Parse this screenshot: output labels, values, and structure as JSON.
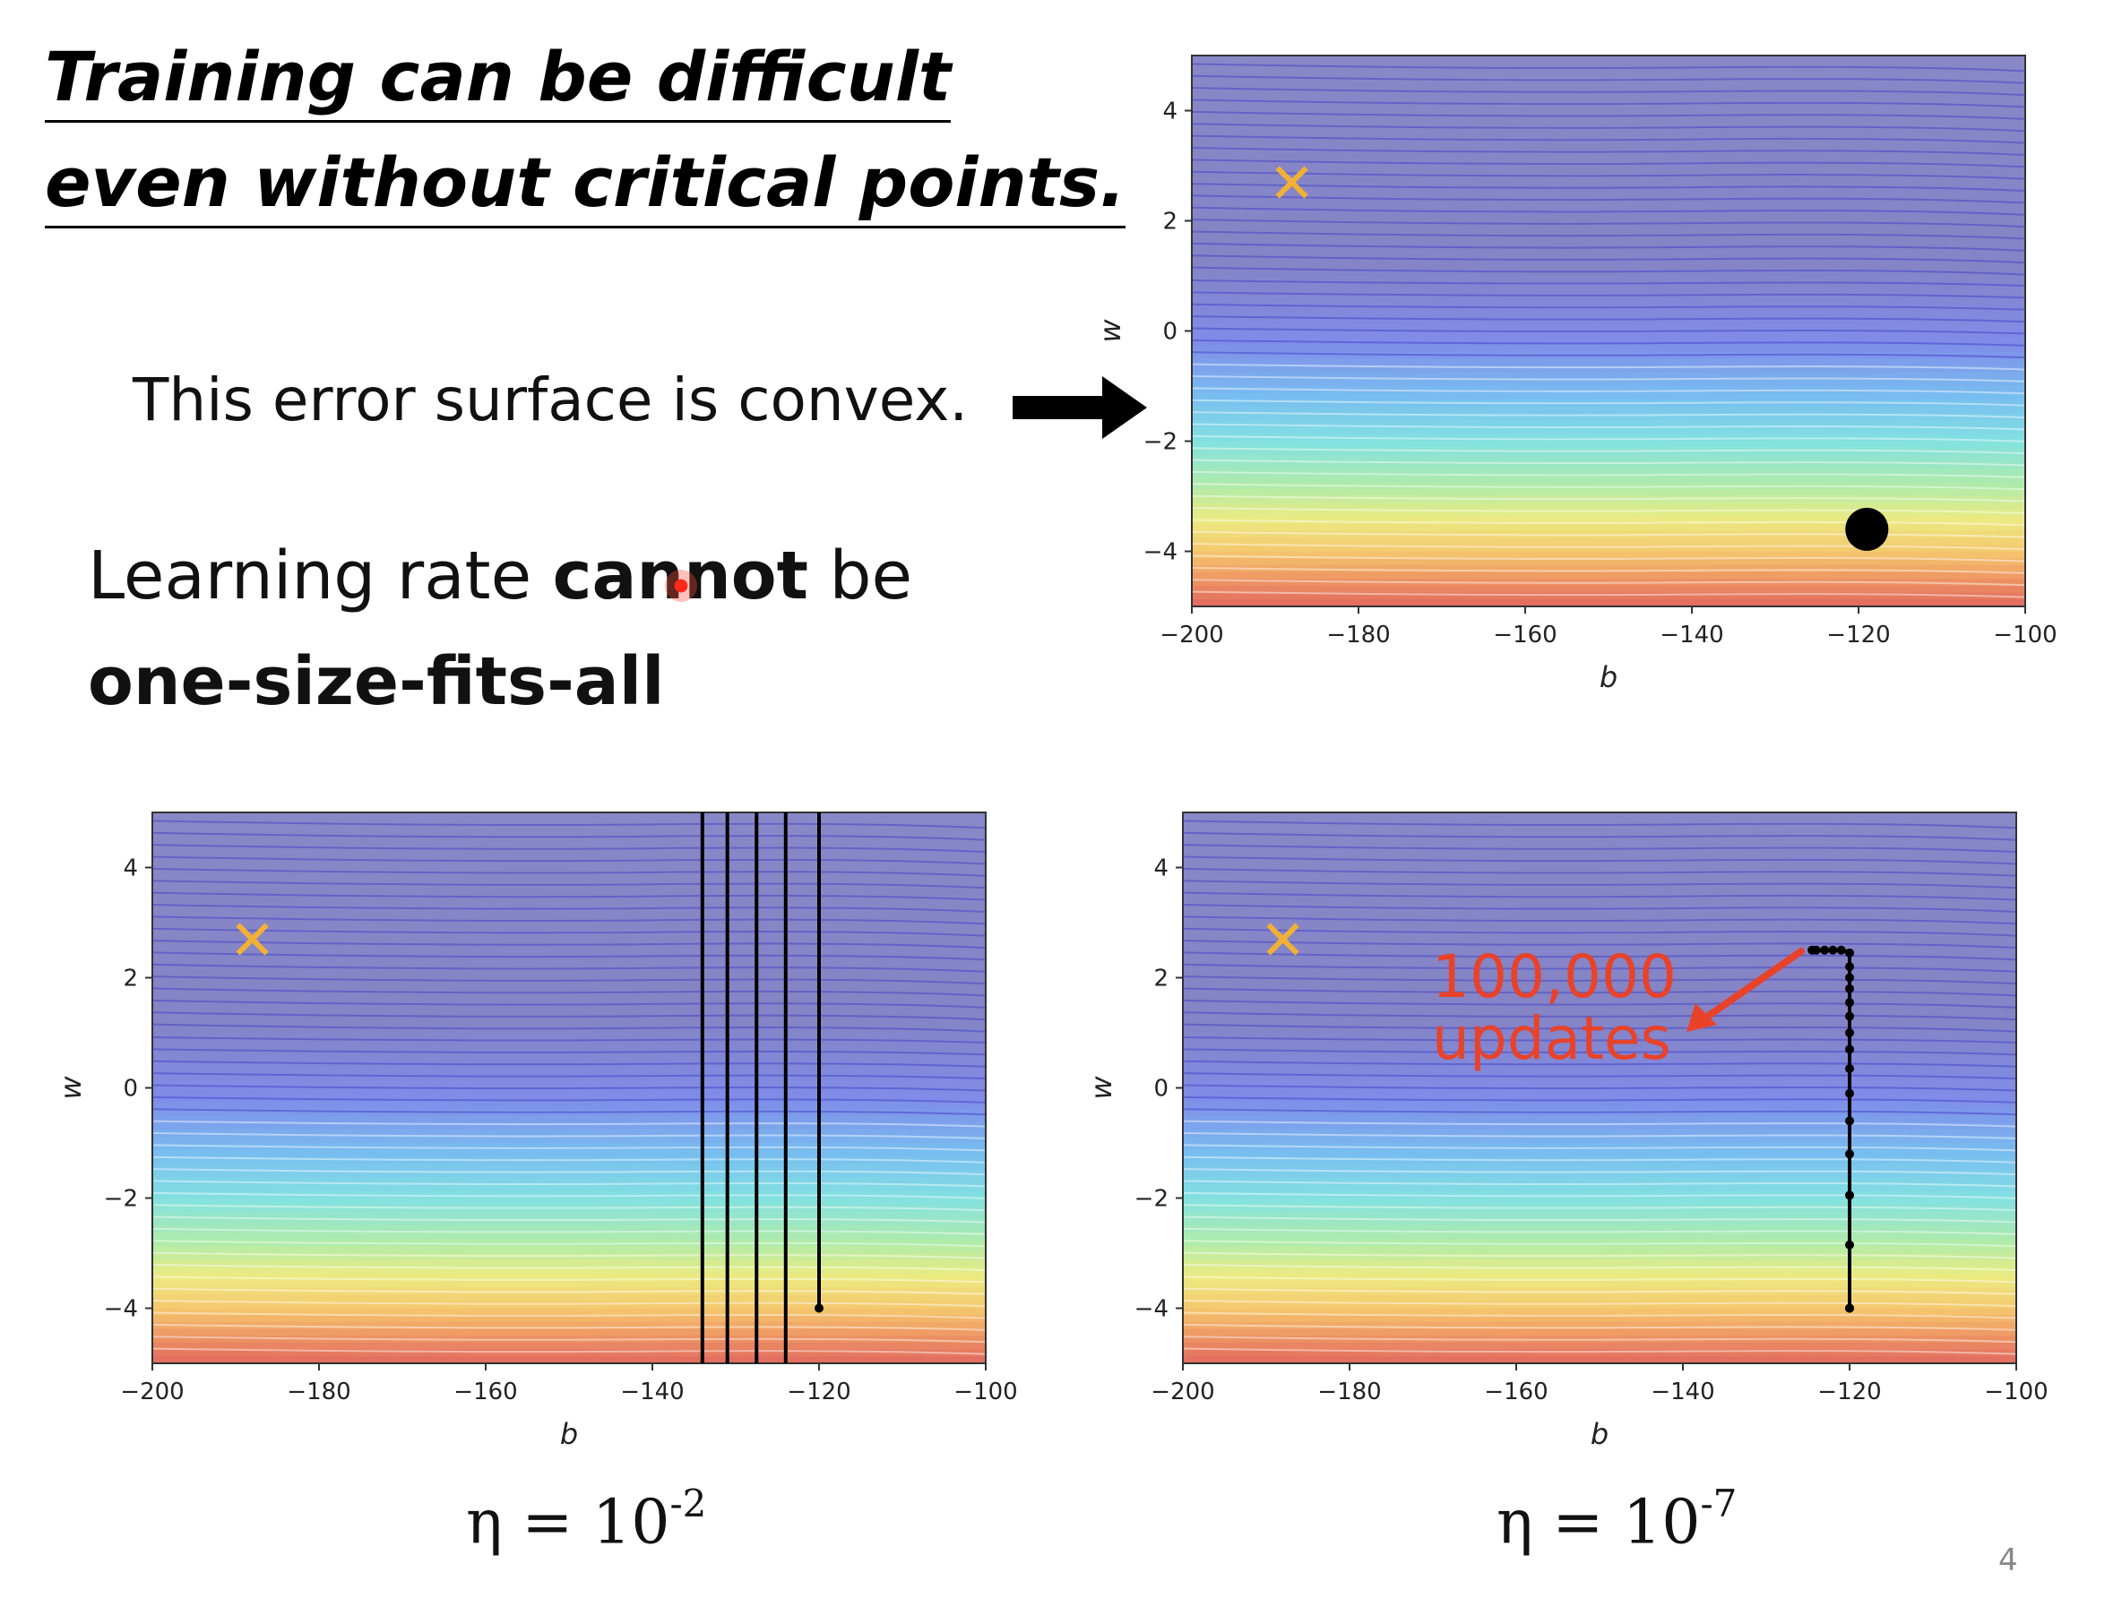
{
  "title": {
    "line1": "Training can be difficult",
    "line2": "even without critical points."
  },
  "convex_note": "This error surface is convex.",
  "learning_rate_note": {
    "part1_plain": "Learning rate ",
    "part1_bold": "cannot",
    "part1_tail": " be",
    "line2_bold": "one-size-fits-all"
  },
  "annotation": {
    "line1": "100,000",
    "line2": "updates"
  },
  "eta_labels": [
    {
      "base": "η = 10",
      "exp": "-2"
    },
    {
      "base": "η = 10",
      "exp": "-7"
    }
  ],
  "page_number": "4",
  "colors": {
    "accent_red": "#e8432a",
    "marker_orange": "#f2b035",
    "path_black": "#000000"
  },
  "chart_data": [
    {
      "type": "heatmap",
      "xlabel": "b",
      "ylabel": "w",
      "xlim": [
        -200,
        -100
      ],
      "ylim": [
        -5,
        5
      ],
      "xticks": [
        -200,
        -180,
        -160,
        -140,
        -120,
        -100
      ],
      "yticks": [
        -4,
        -2,
        0,
        2,
        4
      ],
      "minimum_marker": {
        "b": -188,
        "w": 2.7
      },
      "start_point": {
        "b": -119,
        "w": -3.6
      },
      "paths": []
    },
    {
      "type": "heatmap",
      "xlabel": "b",
      "ylabel": "w",
      "xlim": [
        -200,
        -100
      ],
      "ylim": [
        -5,
        5
      ],
      "xticks": [
        -200,
        -180,
        -160,
        -140,
        -120,
        -100
      ],
      "yticks": [
        -4,
        -2,
        0,
        2,
        4
      ],
      "minimum_marker": {
        "b": -188,
        "w": 2.7
      },
      "start_point": {
        "b": -120,
        "w": -4
      },
      "paths": [
        {
          "b": [
            -120,
            -120
          ],
          "w": [
            -4,
            5
          ]
        },
        {
          "b": [
            -124,
            -124
          ],
          "w": [
            -5,
            5
          ]
        },
        {
          "b": [
            -127.5,
            -127.5
          ],
          "w": [
            -5,
            5
          ]
        },
        {
          "b": [
            -131,
            -131
          ],
          "w": [
            -5,
            5
          ]
        },
        {
          "b": [
            -134,
            -134
          ],
          "w": [
            -5,
            5
          ]
        }
      ]
    },
    {
      "type": "heatmap",
      "xlabel": "b",
      "ylabel": "w",
      "xlim": [
        -200,
        -100
      ],
      "ylim": [
        -5,
        5
      ],
      "xticks": [
        -200,
        -180,
        -160,
        -140,
        -120,
        -100
      ],
      "yticks": [
        -4,
        -2,
        0,
        2,
        4
      ],
      "minimum_marker": {
        "b": -188,
        "w": 2.7
      },
      "start_point": {
        "b": -120,
        "w": -4
      },
      "paths": [
        {
          "b": [
            -120,
            -120,
            -120,
            -120,
            -120,
            -120,
            -120,
            -120,
            -120,
            -120,
            -120,
            -120,
            -120,
            -120,
            -120,
            -121,
            -122,
            -123,
            -124,
            -124.5
          ],
          "w": [
            -4,
            -2.85,
            -1.95,
            -1.2,
            -0.6,
            -0.1,
            0.35,
            0.7,
            1.0,
            1.3,
            1.55,
            1.8,
            2.0,
            2.2,
            2.45,
            2.5,
            2.5,
            2.5,
            2.5,
            2.5
          ]
        }
      ]
    }
  ]
}
